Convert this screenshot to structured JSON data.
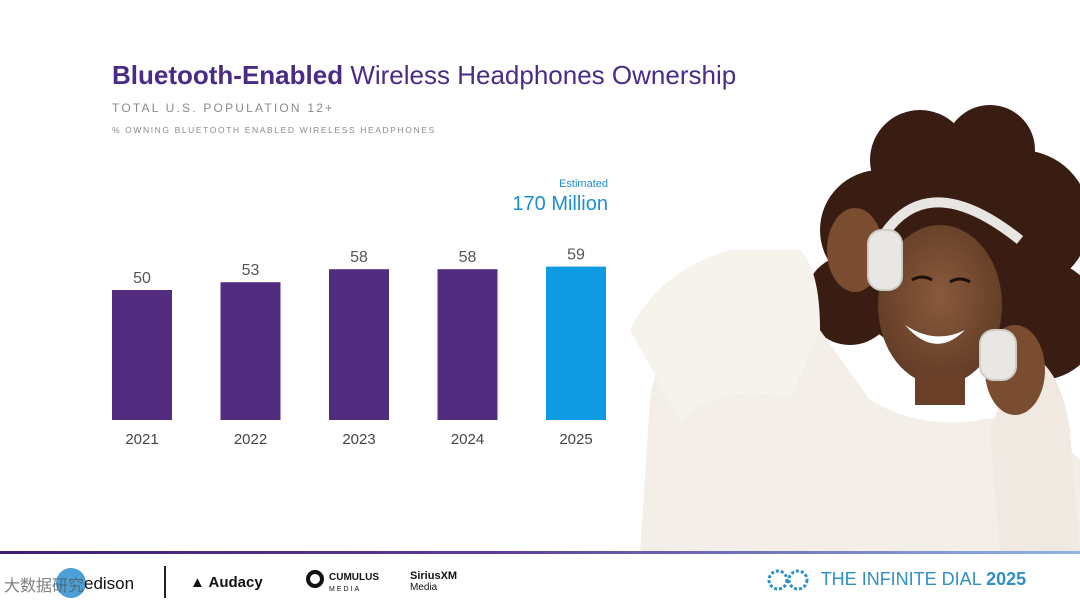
{
  "title_bold": "Bluetooth-Enabled",
  "title_rest": "Wireless Headphones Ownership",
  "subtitle": "TOTAL U.S. POPULATION 12+",
  "subsubtitle": "% OWNING BLUETOOTH ENABLED WIRELESS HEADPHONES",
  "estimate_label": "Estimated",
  "estimate_value": "170 Million",
  "chart_data": {
    "type": "bar",
    "title": "Bluetooth-Enabled Wireless Headphones Ownership",
    "xlabel": "",
    "ylabel": "% owning Bluetooth enabled wireless headphones",
    "categories": [
      "2021",
      "2022",
      "2023",
      "2024",
      "2025"
    ],
    "values": [
      50,
      53,
      58,
      58,
      59
    ],
    "highlight_index": 4,
    "colors": {
      "default": "#512c7f",
      "highlight": "#0f9be3"
    },
    "ylim": [
      0,
      100
    ]
  },
  "footer": {
    "logos": {
      "edison": "edison",
      "audacy": "Audacy",
      "cumulus": "CUMULUS",
      "cumulus_sub": "MEDIA",
      "sirius": "SiriusXM",
      "sirius_sub": "Media"
    },
    "brand": {
      "prefix": "THE INFINITE DIAL",
      "year": "2025"
    },
    "watermark": "大数据研究"
  },
  "colors": {
    "title": "#4a2b86",
    "accent": "#1b8ed0"
  }
}
